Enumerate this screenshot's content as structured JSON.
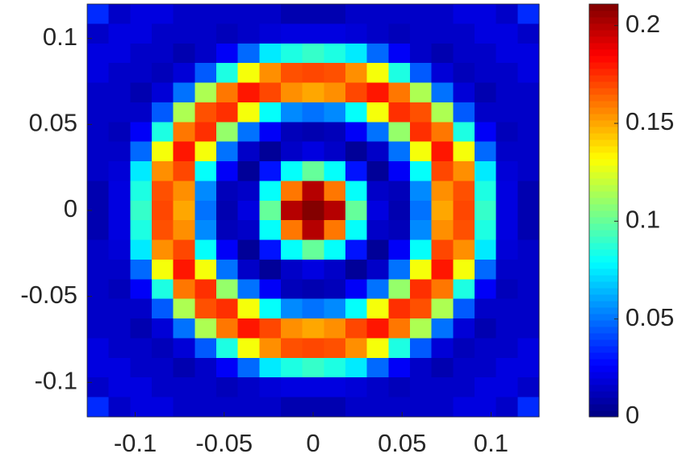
{
  "chart_data": {
    "type": "heatmap",
    "xlim": [
      -0.127,
      0.127
    ],
    "ylim": [
      -0.12,
      0.12
    ],
    "xticks": [
      -0.1,
      -0.05,
      0,
      0.05,
      0.1
    ],
    "yticks": [
      -0.1,
      -0.05,
      0,
      0.05,
      0.1
    ],
    "colormap": "jet",
    "clim": [
      0,
      0.211
    ],
    "cticks": [
      0,
      0.05,
      0.1,
      0.15,
      0.2
    ],
    "z": [
      [
        0.035,
        0.015,
        0.02,
        0.02,
        0.015,
        0.015,
        0.015,
        0.015,
        0.015,
        0.01,
        0.01,
        0.01,
        0.015,
        0.015,
        0.015,
        0.015,
        0.015,
        0.02,
        0.02,
        0.015,
        0.035
      ],
      [
        0.015,
        0.02,
        0.02,
        0.015,
        0.015,
        0.015,
        0.012,
        0.015,
        0.018,
        0.02,
        0.02,
        0.02,
        0.018,
        0.015,
        0.012,
        0.015,
        0.015,
        0.015,
        0.02,
        0.02,
        0.015
      ],
      [
        0.02,
        0.02,
        0.015,
        0.015,
        0.01,
        0.015,
        0.025,
        0.048,
        0.075,
        0.085,
        0.09,
        0.085,
        0.075,
        0.048,
        0.025,
        0.015,
        0.01,
        0.015,
        0.015,
        0.02,
        0.02
      ],
      [
        0.02,
        0.015,
        0.015,
        0.012,
        0.018,
        0.045,
        0.085,
        0.13,
        0.155,
        0.168,
        0.17,
        0.168,
        0.155,
        0.13,
        0.085,
        0.045,
        0.018,
        0.012,
        0.015,
        0.015,
        0.02
      ],
      [
        0.015,
        0.015,
        0.01,
        0.018,
        0.05,
        0.115,
        0.16,
        0.18,
        0.17,
        0.155,
        0.15,
        0.155,
        0.17,
        0.18,
        0.16,
        0.115,
        0.05,
        0.018,
        0.01,
        0.015,
        0.015
      ],
      [
        0.015,
        0.015,
        0.015,
        0.045,
        0.115,
        0.168,
        0.175,
        0.13,
        0.08,
        0.055,
        0.05,
        0.055,
        0.08,
        0.13,
        0.175,
        0.168,
        0.115,
        0.045,
        0.015,
        0.015,
        0.015
      ],
      [
        0.015,
        0.012,
        0.025,
        0.085,
        0.16,
        0.175,
        0.11,
        0.05,
        0.025,
        0.012,
        0.01,
        0.012,
        0.025,
        0.05,
        0.11,
        0.175,
        0.16,
        0.085,
        0.025,
        0.012,
        0.015
      ],
      [
        0.015,
        0.015,
        0.048,
        0.13,
        0.18,
        0.13,
        0.05,
        0.015,
        0.005,
        0.015,
        0.02,
        0.015,
        0.005,
        0.015,
        0.05,
        0.13,
        0.18,
        0.13,
        0.048,
        0.015,
        0.015
      ],
      [
        0.015,
        0.018,
        0.075,
        0.155,
        0.17,
        0.08,
        0.025,
        0.005,
        0.03,
        0.08,
        0.1,
        0.08,
        0.03,
        0.005,
        0.025,
        0.08,
        0.17,
        0.155,
        0.075,
        0.018,
        0.015
      ],
      [
        0.01,
        0.02,
        0.085,
        0.168,
        0.155,
        0.055,
        0.012,
        0.015,
        0.08,
        0.16,
        0.2,
        0.16,
        0.08,
        0.015,
        0.012,
        0.055,
        0.155,
        0.168,
        0.085,
        0.02,
        0.01
      ],
      [
        0.01,
        0.02,
        0.09,
        0.17,
        0.15,
        0.05,
        0.01,
        0.02,
        0.1,
        0.2,
        0.21,
        0.2,
        0.1,
        0.02,
        0.01,
        0.05,
        0.15,
        0.17,
        0.09,
        0.02,
        0.01
      ],
      [
        0.01,
        0.02,
        0.085,
        0.168,
        0.155,
        0.055,
        0.012,
        0.015,
        0.08,
        0.16,
        0.2,
        0.16,
        0.08,
        0.015,
        0.012,
        0.055,
        0.155,
        0.168,
        0.085,
        0.02,
        0.01
      ],
      [
        0.015,
        0.018,
        0.075,
        0.155,
        0.17,
        0.08,
        0.025,
        0.005,
        0.03,
        0.08,
        0.1,
        0.08,
        0.03,
        0.005,
        0.025,
        0.08,
        0.17,
        0.155,
        0.075,
        0.018,
        0.015
      ],
      [
        0.015,
        0.015,
        0.048,
        0.13,
        0.18,
        0.13,
        0.05,
        0.015,
        0.005,
        0.015,
        0.02,
        0.015,
        0.005,
        0.015,
        0.05,
        0.13,
        0.18,
        0.13,
        0.048,
        0.015,
        0.015
      ],
      [
        0.015,
        0.012,
        0.025,
        0.085,
        0.16,
        0.175,
        0.11,
        0.05,
        0.025,
        0.012,
        0.01,
        0.012,
        0.025,
        0.05,
        0.11,
        0.175,
        0.16,
        0.085,
        0.025,
        0.012,
        0.015
      ],
      [
        0.015,
        0.015,
        0.015,
        0.045,
        0.115,
        0.168,
        0.175,
        0.13,
        0.08,
        0.055,
        0.05,
        0.055,
        0.08,
        0.13,
        0.175,
        0.168,
        0.115,
        0.045,
        0.015,
        0.015,
        0.015
      ],
      [
        0.015,
        0.015,
        0.01,
        0.018,
        0.05,
        0.115,
        0.16,
        0.18,
        0.17,
        0.155,
        0.15,
        0.155,
        0.17,
        0.18,
        0.16,
        0.115,
        0.05,
        0.018,
        0.01,
        0.015,
        0.015
      ],
      [
        0.02,
        0.015,
        0.015,
        0.012,
        0.018,
        0.045,
        0.085,
        0.13,
        0.155,
        0.168,
        0.17,
        0.168,
        0.155,
        0.13,
        0.085,
        0.045,
        0.018,
        0.012,
        0.015,
        0.015,
        0.02
      ],
      [
        0.02,
        0.02,
        0.015,
        0.015,
        0.01,
        0.015,
        0.025,
        0.048,
        0.075,
        0.085,
        0.09,
        0.085,
        0.075,
        0.048,
        0.025,
        0.015,
        0.01,
        0.015,
        0.015,
        0.02,
        0.02
      ],
      [
        0.015,
        0.02,
        0.02,
        0.015,
        0.015,
        0.015,
        0.012,
        0.015,
        0.018,
        0.02,
        0.02,
        0.02,
        0.018,
        0.015,
        0.012,
        0.015,
        0.015,
        0.015,
        0.02,
        0.02,
        0.015
      ],
      [
        0.035,
        0.015,
        0.02,
        0.02,
        0.015,
        0.015,
        0.015,
        0.015,
        0.015,
        0.01,
        0.01,
        0.01,
        0.015,
        0.015,
        0.015,
        0.015,
        0.015,
        0.02,
        0.02,
        0.015,
        0.035
      ]
    ]
  }
}
